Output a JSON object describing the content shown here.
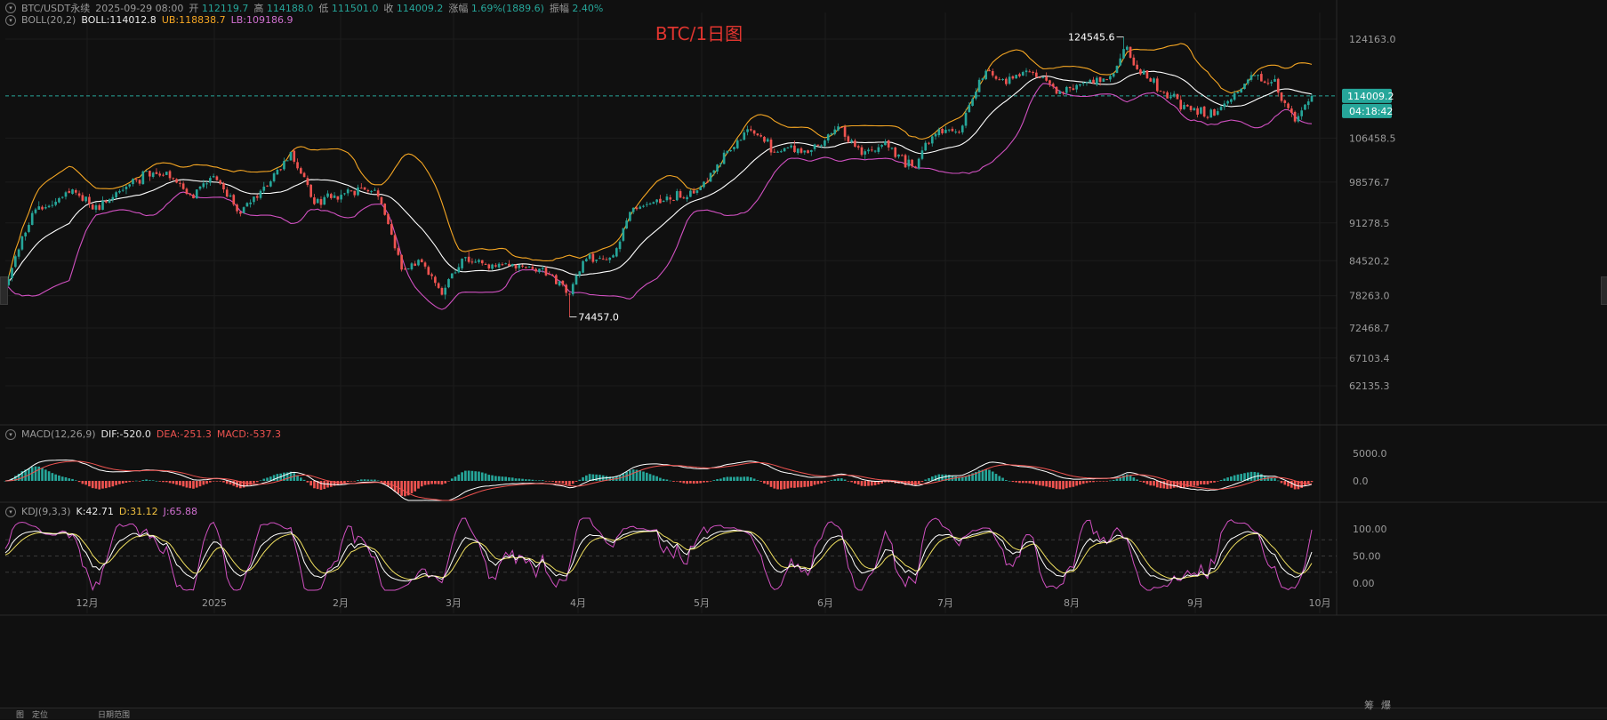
{
  "header": {
    "symbol": "BTC/USDT永续",
    "datetime": "2025-09-29 08:00",
    "open_label": "开",
    "open": "112119.7",
    "high_label": "高",
    "high": "114188.0",
    "low_label": "低",
    "low": "111501.0",
    "close_label": "收",
    "close": "114009.2",
    "change_label": "涨幅",
    "change": "1.69%(1889.6)",
    "amp_label": "振幅",
    "amp": "2.40%"
  },
  "boll": {
    "name": "BOLL(20,2)",
    "mid": "BOLL:114012.8",
    "ub": "UB:118838.7",
    "lb": "LB:109186.9"
  },
  "macd": {
    "name": "MACD(12,26,9)",
    "dif": "DIF:-520.0",
    "dea": "DEA:-251.3",
    "macd": "MACD:-537.3"
  },
  "kdj": {
    "name": "KDJ(9,3,3)",
    "k": "K:42.71",
    "d": "D:31.12",
    "j": "J:65.88"
  },
  "bottom_tabs": {
    "a": "图",
    "b": "定位",
    "c": "日期范围",
    "d": "筹",
    "e": "爆"
  },
  "colors": {
    "up": "#26a69a",
    "down": "#ef5350",
    "boll_mid": "#ffffff",
    "boll_ub": "#f5a623",
    "boll_lb": "#d050c0",
    "kdj_k": "#ffffff",
    "kdj_d": "#f0e060",
    "kdj_j": "#d050c0",
    "bg": "#101010"
  },
  "chart_data": {
    "type": "candlestick",
    "title": "BTC/1日图",
    "x_tick_labels": [
      "12月",
      "2025",
      "2月",
      "3月",
      "4月",
      "5月",
      "6月",
      "7月",
      "8月",
      "9月",
      "10月"
    ],
    "price_axis_labels": [
      "124163.0",
      "114009.2",
      "106458.5",
      "98576.7",
      "91278.5",
      "84520.2",
      "78263.0",
      "72468.7",
      "67103.4",
      "62135.3"
    ],
    "current_price": "114009.2",
    "countdown": "04:18:42",
    "annotations": {
      "high": "124545.6",
      "low": "74457.0"
    },
    "macd_axis_labels": [
      "5000.0",
      "0.0"
    ],
    "kdj_axis_labels": [
      "100.00",
      "50.00",
      "0.00"
    ],
    "price_keypoints": [
      [
        0,
        80000
      ],
      [
        8,
        93000
      ],
      [
        20,
        97000
      ],
      [
        28,
        94000
      ],
      [
        38,
        99000
      ],
      [
        48,
        100500
      ],
      [
        55,
        96000
      ],
      [
        62,
        99500
      ],
      [
        70,
        93000
      ],
      [
        78,
        98000
      ],
      [
        85,
        103500
      ],
      [
        92,
        95000
      ],
      [
        100,
        96500
      ],
      [
        108,
        97500
      ],
      [
        112,
        95000
      ],
      [
        118,
        83000
      ],
      [
        124,
        84500
      ],
      [
        130,
        79000
      ],
      [
        136,
        85000
      ],
      [
        145,
        84000
      ],
      [
        155,
        83500
      ],
      [
        163,
        82000
      ],
      [
        168,
        78000
      ],
      [
        172,
        84500
      ],
      [
        180,
        85000
      ],
      [
        187,
        94000
      ],
      [
        195,
        95500
      ],
      [
        205,
        96500
      ],
      [
        215,
        104000
      ],
      [
        222,
        108500
      ],
      [
        228,
        104500
      ],
      [
        235,
        104500
      ],
      [
        240,
        104000
      ],
      [
        248,
        108500
      ],
      [
        255,
        103500
      ],
      [
        262,
        105000
      ],
      [
        270,
        101500
      ],
      [
        277,
        107500
      ],
      [
        284,
        108000
      ],
      [
        292,
        119000
      ],
      [
        298,
        116500
      ],
      [
        304,
        118500
      ],
      [
        310,
        117000
      ],
      [
        314,
        114500
      ],
      [
        322,
        116500
      ],
      [
        330,
        117500
      ],
      [
        333,
        122500
      ],
      [
        338,
        118500
      ],
      [
        345,
        114500
      ],
      [
        352,
        112000
      ],
      [
        360,
        110500
      ],
      [
        370,
        117500
      ],
      [
        378,
        116500
      ],
      [
        384,
        109500
      ],
      [
        389,
        114009
      ]
    ]
  }
}
